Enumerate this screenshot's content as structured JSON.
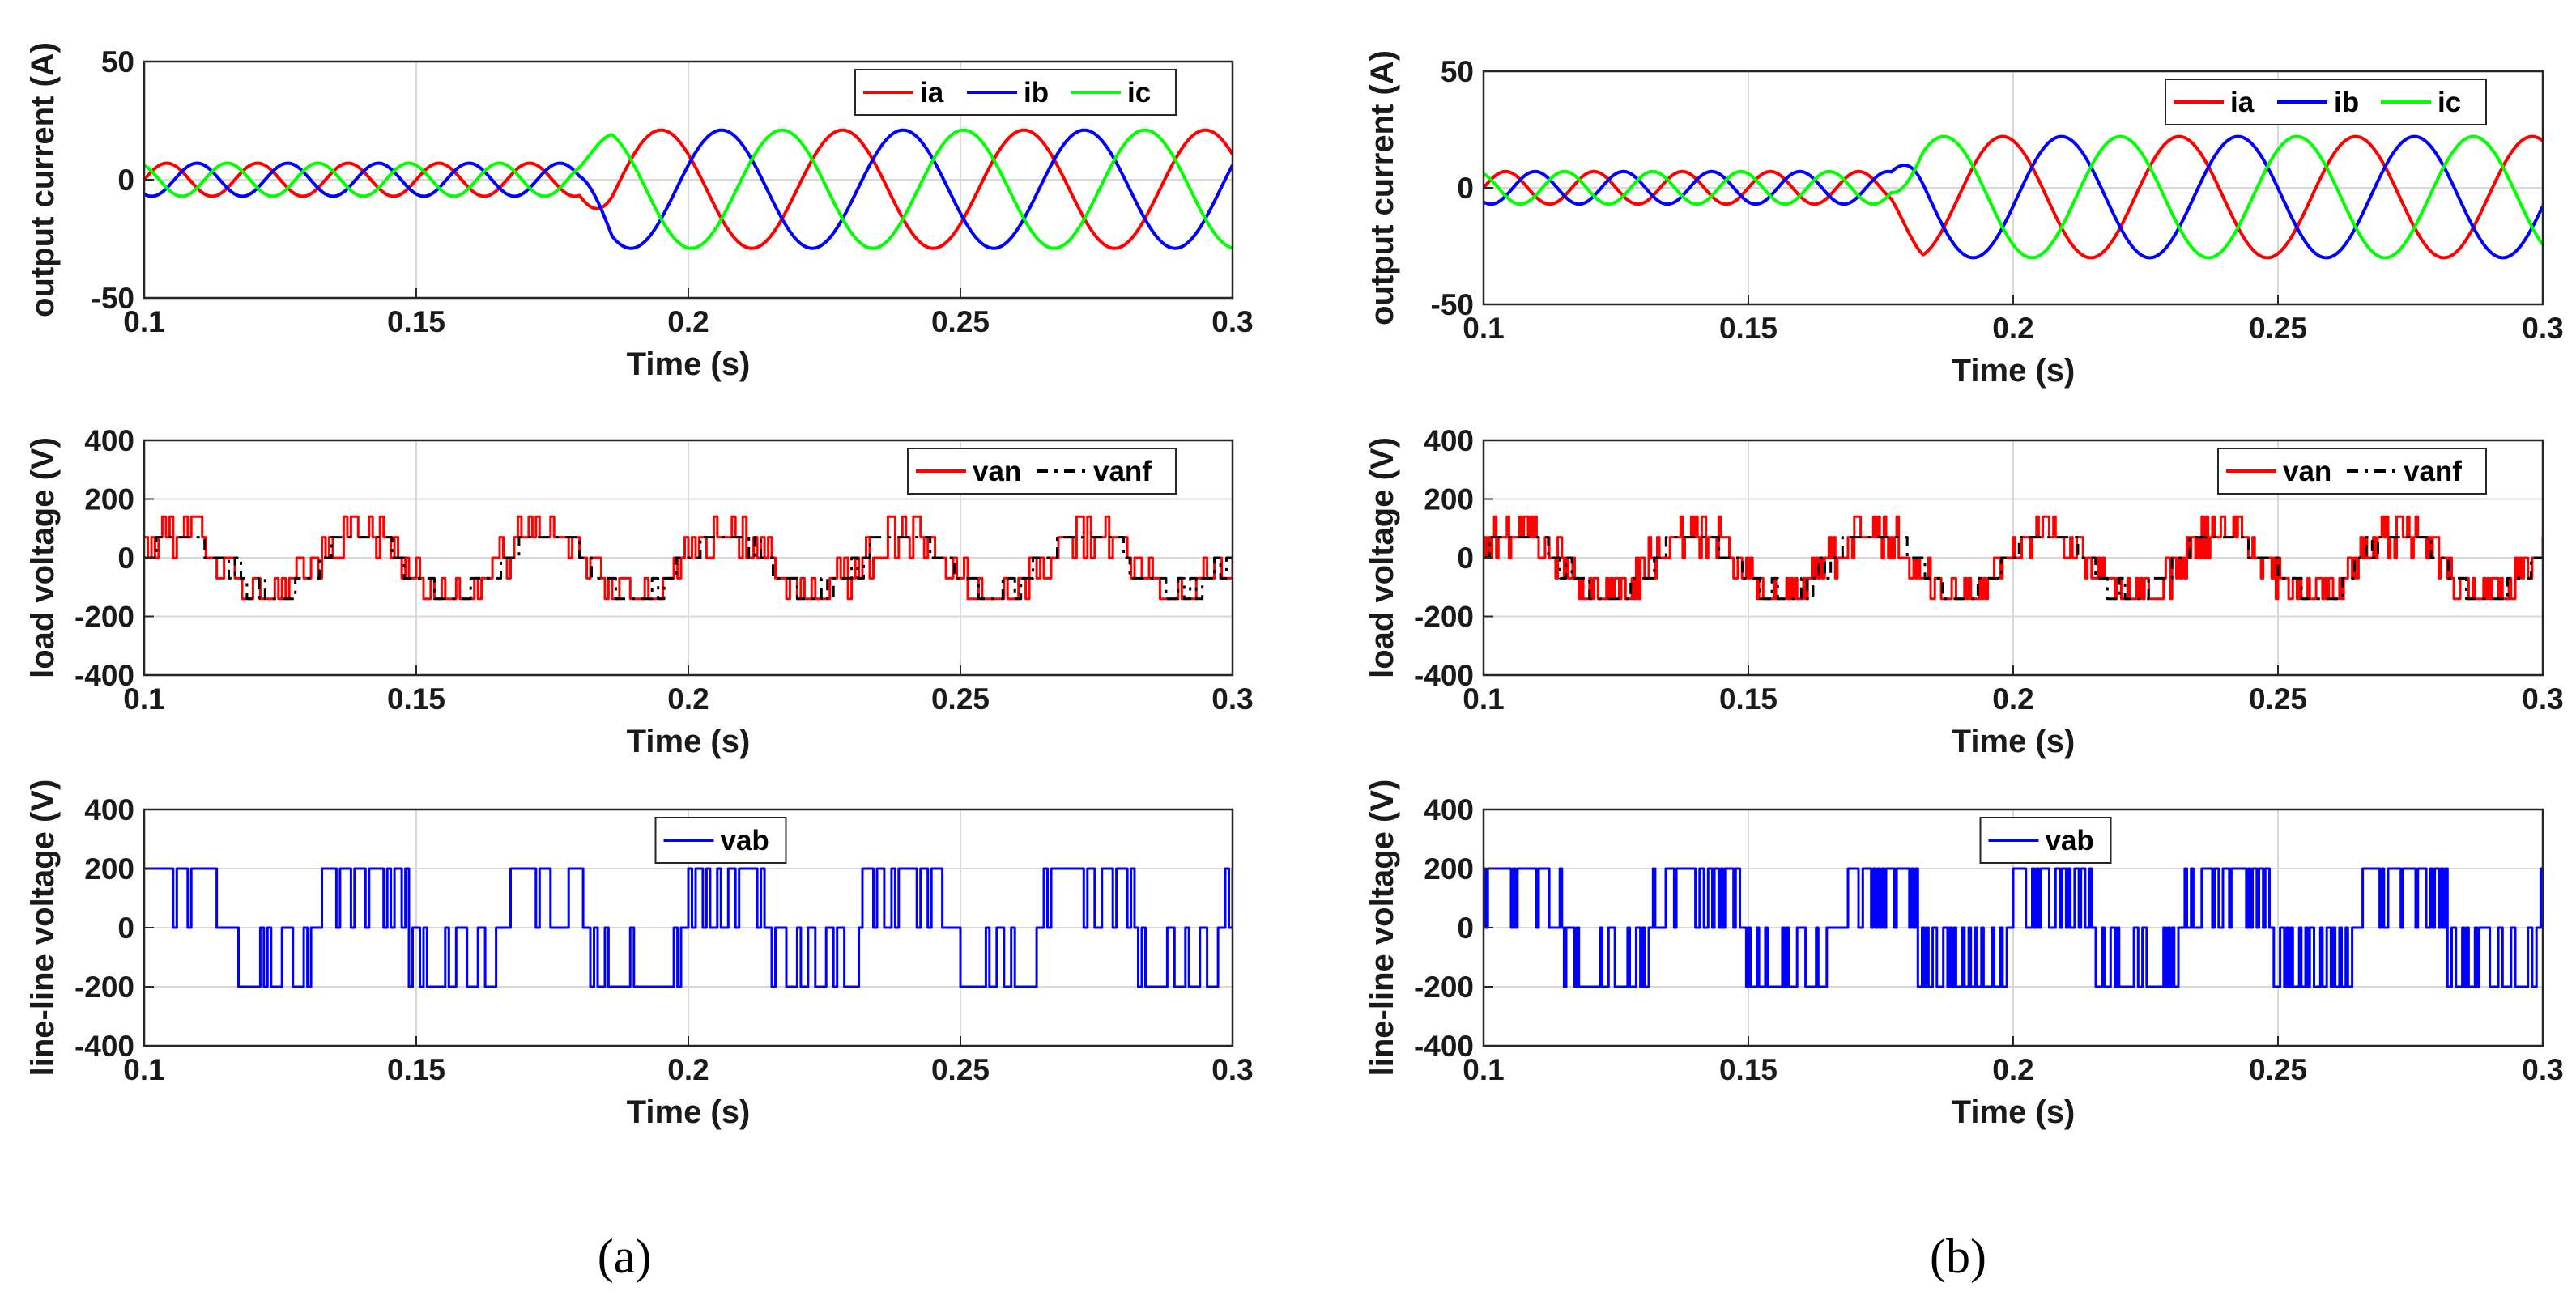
{
  "colors": {
    "ia": "#ff0000",
    "ib": "#0000ff",
    "ic": "#00ff00",
    "van": "#ff0000",
    "vanf": "#000000",
    "vab": "#0000ff",
    "grid": "#d9d9d9",
    "axis": "#262626"
  },
  "captions": {
    "a": "(a)",
    "b": "(b)"
  },
  "chart_data": [
    {
      "id": "a-current",
      "type": "line",
      "panel": "a",
      "ylabel": "output current (A)",
      "xlabel": "Time (s)",
      "xlim": [
        0.1,
        0.3
      ],
      "ylim": [
        -50,
        50
      ],
      "xticks": [
        0.1,
        0.15,
        0.2,
        0.25,
        0.3
      ],
      "xtick_labels": [
        "0.1",
        "0.15",
        "0.2",
        "0.25",
        "0.3"
      ],
      "yticks": [
        -50,
        0,
        50
      ],
      "ytick_labels": [
        "-50",
        "0",
        "50"
      ],
      "grid": true,
      "legend": "top-right",
      "series": [
        {
          "name": "ia",
          "kind": "sine",
          "freq_before": 60,
          "freq_after": 30,
          "amp_before": 7,
          "amp_after": 25,
          "offset_after": -4,
          "step_time": 0.18,
          "phase_deg": 0
        },
        {
          "name": "ib",
          "kind": "sine",
          "freq_before": 60,
          "freq_after": 30,
          "amp_before": 7,
          "amp_after": 25,
          "offset_after": -4,
          "step_time": 0.18,
          "phase_deg": -120
        },
        {
          "name": "ic",
          "kind": "sine",
          "freq_before": 60,
          "freq_after": 30,
          "amp_before": 7,
          "amp_after": 25,
          "offset_after": -4,
          "step_time": 0.18,
          "phase_deg": 120
        }
      ]
    },
    {
      "id": "a-load",
      "type": "line",
      "panel": "a",
      "ylabel": "load voltage (V)",
      "xlabel": "Time (s)",
      "xlim": [
        0.1,
        0.3
      ],
      "ylim": [
        -400,
        400
      ],
      "xticks": [
        0.1,
        0.15,
        0.2,
        0.25,
        0.3
      ],
      "xtick_labels": [
        "0.1",
        "0.15",
        "0.2",
        "0.25",
        "0.3"
      ],
      "yticks": [
        -400,
        -200,
        0,
        200,
        400
      ],
      "ytick_labels": [
        "-400",
        "-200",
        "0",
        "200",
        "400"
      ],
      "grid": true,
      "legend": "top-right",
      "series": [
        {
          "name": "van",
          "kind": "multilevel",
          "freq": 30,
          "levels": [
            -140,
            -70,
            0,
            70,
            140
          ],
          "switch_hz": 1500
        },
        {
          "name": "vanf",
          "kind": "multilevel-filtered",
          "freq": 30,
          "levels": [
            -140,
            -70,
            0,
            70
          ],
          "dash": "dashdot"
        }
      ]
    },
    {
      "id": "a-lineline",
      "type": "line",
      "panel": "a",
      "ylabel": "line-line voltage (V)",
      "xlabel": "Time (s)",
      "xlim": [
        0.1,
        0.3
      ],
      "ylim": [
        -400,
        400
      ],
      "xticks": [
        0.1,
        0.15,
        0.2,
        0.25,
        0.3
      ],
      "xtick_labels": [
        "0.1",
        "0.15",
        "0.2",
        "0.25",
        "0.3"
      ],
      "yticks": [
        -400,
        -200,
        0,
        200,
        400
      ],
      "ytick_labels": [
        "-400",
        "-200",
        "0",
        "200",
        "400"
      ],
      "grid": true,
      "legend": "top-center",
      "series": [
        {
          "name": "vab",
          "kind": "pwm",
          "freq": 30,
          "levels": [
            -200,
            0,
            200
          ],
          "switch_hz": 1500
        }
      ]
    },
    {
      "id": "b-current",
      "type": "line",
      "panel": "b",
      "ylabel": "output current (A)",
      "xlabel": "Time (s)",
      "xlim": [
        0.1,
        0.3
      ],
      "ylim": [
        -50,
        50
      ],
      "xticks": [
        0.1,
        0.15,
        0.2,
        0.25,
        0.3
      ],
      "xtick_labels": [
        "0.1",
        "0.15",
        "0.2",
        "0.25",
        "0.3"
      ],
      "yticks": [
        -50,
        0,
        50
      ],
      "ytick_labels": [
        "-50",
        "0",
        "50"
      ],
      "grid": true,
      "legend": "top-right",
      "series": [
        {
          "name": "ia",
          "kind": "sine",
          "freq_before": 60,
          "freq_after": 30,
          "amp_before": 7,
          "amp_after": 26,
          "offset_after": -4,
          "step_time": 0.177,
          "phase_deg": 0
        },
        {
          "name": "ib",
          "kind": "sine",
          "freq_before": 60,
          "freq_after": 30,
          "amp_before": 7,
          "amp_after": 26,
          "offset_after": -4,
          "step_time": 0.177,
          "phase_deg": -120
        },
        {
          "name": "ic",
          "kind": "sine",
          "freq_before": 60,
          "freq_after": 30,
          "amp_before": 7,
          "amp_after": 26,
          "offset_after": -4,
          "step_time": 0.177,
          "phase_deg": 120
        }
      ]
    },
    {
      "id": "b-load",
      "type": "line",
      "panel": "b",
      "ylabel": "load voltage (V)",
      "xlabel": "Time (s)",
      "xlim": [
        0.1,
        0.3
      ],
      "ylim": [
        -400,
        400
      ],
      "xticks": [
        0.1,
        0.15,
        0.2,
        0.25,
        0.3
      ],
      "xtick_labels": [
        "0.1",
        "0.15",
        "0.2",
        "0.25",
        "0.3"
      ],
      "yticks": [
        -400,
        -200,
        0,
        200,
        400
      ],
      "ytick_labels": [
        "-400",
        "-200",
        "0",
        "200",
        "400"
      ],
      "grid": true,
      "legend": "top-right",
      "series": [
        {
          "name": "van",
          "kind": "multilevel",
          "freq": 30,
          "levels": [
            -140,
            -70,
            0,
            70,
            140
          ],
          "switch_hz": 2500
        },
        {
          "name": "vanf",
          "kind": "multilevel-filtered",
          "freq": 30,
          "levels": [
            -140,
            -70,
            0,
            70
          ],
          "dash": "dashdot"
        }
      ]
    },
    {
      "id": "b-lineline",
      "type": "line",
      "panel": "b",
      "ylabel": "line-line voltage (V)",
      "xlabel": "Time (s)",
      "xlim": [
        0.1,
        0.3
      ],
      "ylim": [
        -400,
        400
      ],
      "xticks": [
        0.1,
        0.15,
        0.2,
        0.25,
        0.3
      ],
      "xtick_labels": [
        "0.1",
        "0.15",
        "0.2",
        "0.25",
        "0.3"
      ],
      "yticks": [
        -400,
        -200,
        0,
        200,
        400
      ],
      "ytick_labels": [
        "-400",
        "-200",
        "0",
        "200",
        "400"
      ],
      "grid": true,
      "legend": "top-center",
      "series": [
        {
          "name": "vab",
          "kind": "pwm",
          "freq": 30,
          "levels": [
            -200,
            0,
            200
          ],
          "switch_hz": 2500
        }
      ]
    }
  ]
}
